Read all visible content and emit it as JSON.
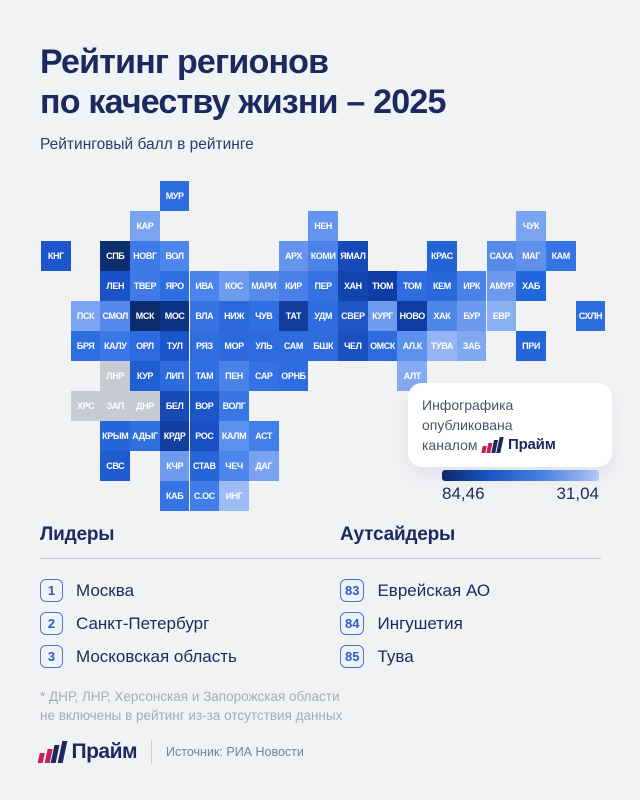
{
  "header": {
    "title_line1": "Рейтинг регионов",
    "title_line2": "по качеству жизни – 2025",
    "subtitle": "Рейтинговый балл в рейтинге"
  },
  "chart_data": {
    "type": "heatmap",
    "title": "Рейтинг регионов по качеству жизни – 2025",
    "subtitle": "Рейтинговый балл в рейтинге",
    "colorscale": {
      "max": 84.46,
      "min": 31.04,
      "max_label": "84,46",
      "min_label": "31,04",
      "gradient_stops": [
        "#0a2b69",
        "#1c55c8",
        "#4d85e9",
        "#b5ccf7"
      ],
      "no_data_color": "#c6cad2"
    },
    "tiles": [
      {
        "label": "МУР",
        "col": 4,
        "row": 0,
        "color": "#2e6de0"
      },
      {
        "label": "КАР",
        "col": 3,
        "row": 1,
        "color": "#7aa4f0"
      },
      {
        "label": "НЕН",
        "col": 9,
        "row": 1,
        "color": "#6594ee"
      },
      {
        "label": "ЧУК",
        "col": 16,
        "row": 1,
        "color": "#7aa4f0"
      },
      {
        "label": "КНГ",
        "col": 0,
        "row": 2,
        "color": "#1d57cc"
      },
      {
        "label": "СПБ",
        "col": 2,
        "row": 2,
        "color": "#0c2f6e"
      },
      {
        "label": "НОВГ",
        "col": 3,
        "row": 2,
        "color": "#3d7ae6"
      },
      {
        "label": "ВОЛ",
        "col": 4,
        "row": 2,
        "color": "#4d86ea"
      },
      {
        "label": "АРХ",
        "col": 8,
        "row": 2,
        "color": "#6694ec"
      },
      {
        "label": "КОМИ",
        "col": 9,
        "row": 2,
        "color": "#4a82e8"
      },
      {
        "label": "ЯМАЛ",
        "col": 10,
        "row": 2,
        "color": "#154ab8"
      },
      {
        "label": "КРАС",
        "col": 13,
        "row": 2,
        "color": "#2463d6"
      },
      {
        "label": "САХА",
        "col": 15,
        "row": 2,
        "color": "#568ae8"
      },
      {
        "label": "МАГ",
        "col": 16,
        "row": 2,
        "color": "#6090ec"
      },
      {
        "label": "КАМ",
        "col": 17,
        "row": 2,
        "color": "#3574e4"
      },
      {
        "label": "ЛЕН",
        "col": 2,
        "row": 3,
        "color": "#1b52c8"
      },
      {
        "label": "ТВЕР",
        "col": 3,
        "row": 3,
        "color": "#3f7ae6"
      },
      {
        "label": "ЯРО",
        "col": 4,
        "row": 3,
        "color": "#2e6fe0"
      },
      {
        "label": "ИВА",
        "col": 5,
        "row": 3,
        "color": "#4a83ea"
      },
      {
        "label": "КОС",
        "col": 6,
        "row": 3,
        "color": "#6d9bef"
      },
      {
        "label": "МАРИ",
        "col": 7,
        "row": 3,
        "color": "#568ae9"
      },
      {
        "label": "КИР",
        "col": 8,
        "row": 3,
        "color": "#4880e8"
      },
      {
        "label": "ПЕР",
        "col": 9,
        "row": 3,
        "color": "#3372e0"
      },
      {
        "label": "ХАН",
        "col": 10,
        "row": 3,
        "color": "#1245ae"
      },
      {
        "label": "ТЮМ",
        "col": 11,
        "row": 3,
        "color": "#0e3da5"
      },
      {
        "label": "ТОМ",
        "col": 12,
        "row": 3,
        "color": "#2e6cdf"
      },
      {
        "label": "КЕМ",
        "col": 13,
        "row": 3,
        "color": "#2868da"
      },
      {
        "label": "ИРК",
        "col": 14,
        "row": 3,
        "color": "#4a82e8"
      },
      {
        "label": "АМУР",
        "col": 15,
        "row": 3,
        "color": "#6d9aee"
      },
      {
        "label": "ХАБ",
        "col": 16,
        "row": 3,
        "color": "#2166dd"
      },
      {
        "label": "ПСК",
        "col": 1,
        "row": 4,
        "color": "#7aa4f0"
      },
      {
        "label": "СМОЛ",
        "col": 2,
        "row": 4,
        "color": "#5588ea"
      },
      {
        "label": "МСК",
        "col": 3,
        "row": 4,
        "color": "#0b2d6b"
      },
      {
        "label": "МОС",
        "col": 4,
        "row": 4,
        "color": "#0d3484"
      },
      {
        "label": "ВЛА",
        "col": 5,
        "row": 4,
        "color": "#3574e2"
      },
      {
        "label": "НИЖ",
        "col": 6,
        "row": 4,
        "color": "#2b69da"
      },
      {
        "label": "ЧУВ",
        "col": 7,
        "row": 4,
        "color": "#2e6fdf"
      },
      {
        "label": "ТАТ",
        "col": 8,
        "row": 4,
        "color": "#123c9e"
      },
      {
        "label": "УДМ",
        "col": 9,
        "row": 4,
        "color": "#2e6de0"
      },
      {
        "label": "СВЕР",
        "col": 10,
        "row": 4,
        "color": "#2055c8"
      },
      {
        "label": "КУРГ",
        "col": 11,
        "row": 4,
        "color": "#6f9bef"
      },
      {
        "label": "НОВО",
        "col": 12,
        "row": 4,
        "color": "#0f3da3"
      },
      {
        "label": "ХАК",
        "col": 13,
        "row": 4,
        "color": "#4d85e9"
      },
      {
        "label": "БУР",
        "col": 14,
        "row": 4,
        "color": "#6d9aee"
      },
      {
        "label": "ЕВР",
        "col": 15,
        "row": 4,
        "color": "#8ab0f2"
      },
      {
        "label": "СХЛН",
        "col": 18,
        "row": 4,
        "color": "#2e6de0"
      },
      {
        "label": "БРЯ",
        "col": 1,
        "row": 5,
        "color": "#2e6fe0"
      },
      {
        "label": "КАЛУ",
        "col": 2,
        "row": 5,
        "color": "#3978e4"
      },
      {
        "label": "ОРЛ",
        "col": 3,
        "row": 5,
        "color": "#2e6ade"
      },
      {
        "label": "ТУЛ",
        "col": 4,
        "row": 5,
        "color": "#1b55cc"
      },
      {
        "label": "РЯЗ",
        "col": 5,
        "row": 5,
        "color": "#306ee0"
      },
      {
        "label": "МОР",
        "col": 6,
        "row": 5,
        "color": "#2b69dc"
      },
      {
        "label": "УЛЬ",
        "col": 7,
        "row": 5,
        "color": "#2e6ade"
      },
      {
        "label": "САМ",
        "col": 8,
        "row": 5,
        "color": "#2e6cdd"
      },
      {
        "label": "БШК",
        "col": 9,
        "row": 5,
        "color": "#2e6cdd"
      },
      {
        "label": "ЧЕЛ",
        "col": 10,
        "row": 5,
        "color": "#1a4fbe"
      },
      {
        "label": "ОМСК",
        "col": 11,
        "row": 5,
        "color": "#2e6cdd"
      },
      {
        "label": "АЛ.К",
        "col": 12,
        "row": 5,
        "color": "#5c90ec"
      },
      {
        "label": "ТУВА",
        "col": 13,
        "row": 5,
        "color": "#93b5f4"
      },
      {
        "label": "ЗАБ",
        "col": 14,
        "row": 5,
        "color": "#7fa8f0"
      },
      {
        "label": "ПРИ",
        "col": 16,
        "row": 5,
        "color": "#2565da"
      },
      {
        "label": "ЛНР",
        "col": 2,
        "row": 6,
        "color": "#c6cad2"
      },
      {
        "label": "КУР",
        "col": 3,
        "row": 6,
        "color": "#1f5fd2"
      },
      {
        "label": "ЛИП",
        "col": 4,
        "row": 6,
        "color": "#2e6cdd"
      },
      {
        "label": "ТАМ",
        "col": 5,
        "row": 6,
        "color": "#2e6fe2"
      },
      {
        "label": "ПЕН",
        "col": 6,
        "row": 6,
        "color": "#4a82e8"
      },
      {
        "label": "САР",
        "col": 7,
        "row": 6,
        "color": "#3372e0"
      },
      {
        "label": "ОРНБ",
        "col": 8,
        "row": 6,
        "color": "#2e6de0"
      },
      {
        "label": "АЛТ",
        "col": 12,
        "row": 6,
        "color": "#85abf2"
      },
      {
        "label": "ХРС",
        "col": 1,
        "row": 7,
        "color": "#c6cad2"
      },
      {
        "label": "ЗАП",
        "col": 2,
        "row": 7,
        "color": "#c6cad2"
      },
      {
        "label": "ДНР",
        "col": 3,
        "row": 7,
        "color": "#c6cad2"
      },
      {
        "label": "БЕЛ",
        "col": 4,
        "row": 7,
        "color": "#164bb6"
      },
      {
        "label": "ВОР",
        "col": 5,
        "row": 7,
        "color": "#1c55c8"
      },
      {
        "label": "ВОЛГ",
        "col": 6,
        "row": 7,
        "color": "#3776e4"
      },
      {
        "label": "КРЫМ",
        "col": 2,
        "row": 8,
        "color": "#2666d8"
      },
      {
        "label": "АДЫГ",
        "col": 3,
        "row": 8,
        "color": "#3070de"
      },
      {
        "label": "КРДР",
        "col": 4,
        "row": 8,
        "color": "#113f9f"
      },
      {
        "label": "РОС",
        "col": 5,
        "row": 8,
        "color": "#1a50c4"
      },
      {
        "label": "КАЛМ",
        "col": 6,
        "row": 8,
        "color": "#5f92ec"
      },
      {
        "label": "АСТ",
        "col": 7,
        "row": 8,
        "color": "#417ee6"
      },
      {
        "label": "СВС",
        "col": 2,
        "row": 9,
        "color": "#1e5ccd"
      },
      {
        "label": "КЧР",
        "col": 4,
        "row": 9,
        "color": "#6f9bef"
      },
      {
        "label": "СТАВ",
        "col": 5,
        "row": 9,
        "color": "#2666d8"
      },
      {
        "label": "ЧЕЧ",
        "col": 6,
        "row": 9,
        "color": "#4d86ea"
      },
      {
        "label": "ДАГ",
        "col": 7,
        "row": 9,
        "color": "#79a3f0"
      },
      {
        "label": "КАБ",
        "col": 4,
        "row": 10,
        "color": "#3574e2"
      },
      {
        "label": "С.ОС",
        "col": 5,
        "row": 10,
        "color": "#417ee8"
      },
      {
        "label": "ИНГ",
        "col": 6,
        "row": 10,
        "color": "#9dbbf5"
      },
      {
        "label": "note",
        "col": -1,
        "row": -1,
        "color": "transparent"
      }
    ],
    "no_data_regions": [
      "ЛНР",
      "ХРС",
      "ЗАП",
      "ДНР"
    ],
    "leaders": [
      {
        "rank": "1",
        "name": "Москва"
      },
      {
        "rank": "2",
        "name": "Санкт-Петербург"
      },
      {
        "rank": "3",
        "name": "Московская область"
      }
    ],
    "outsiders": [
      {
        "rank": "83",
        "name": "Еврейская АО"
      },
      {
        "rank": "84",
        "name": "Ингушетия"
      },
      {
        "rank": "85",
        "name": "Тува"
      }
    ]
  },
  "publication_card": {
    "line1": "Инфографика опубликована",
    "line2_prefix": "каналом",
    "brand": "Прайм"
  },
  "sections": {
    "leaders_heading": "Лидеры",
    "outsiders_heading": "Аутсайдеры"
  },
  "footnote": {
    "line1": "* ДНР, ЛНР, Херсонская и Запорожская области",
    "line2": "не включены в рейтинг из-за отсутствия данных"
  },
  "footer": {
    "brand": "Прайм",
    "source": "Источник: РИА Новости"
  }
}
